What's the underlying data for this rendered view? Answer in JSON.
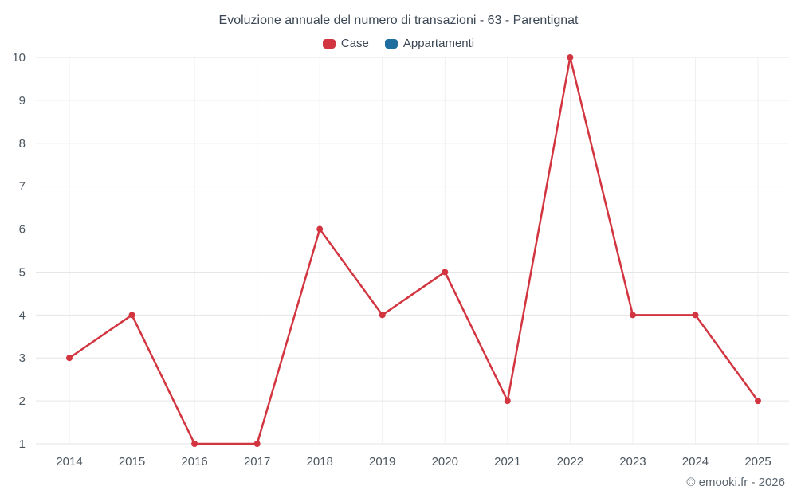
{
  "title": "Evoluzione annuale del numero di transazioni - 63 - Parentignat",
  "legend": {
    "items": [
      {
        "label": "Case",
        "color": "#d2353f"
      },
      {
        "label": "Appartamenti",
        "color": "#1d6d9f"
      }
    ]
  },
  "footer": {
    "copyright": "© emooki.fr - 2026"
  },
  "chart_data": {
    "type": "line",
    "title": "Evoluzione annuale del numero di transazioni - 63 - Parentignat",
    "categories": [
      "2014",
      "2015",
      "2016",
      "2017",
      "2018",
      "2019",
      "2020",
      "2021",
      "2022",
      "2023",
      "2024",
      "2025"
    ],
    "series": [
      {
        "name": "Case",
        "color": "#d2353f",
        "values": [
          3,
          4,
          1,
          1,
          6,
          4,
          5,
          2,
          10,
          4,
          4,
          2
        ]
      },
      {
        "name": "Appartamenti",
        "color": "#1d6d9f",
        "values": []
      }
    ],
    "xlabel": "",
    "ylabel": "",
    "ylim": [
      1,
      10
    ],
    "yticks": [
      1,
      2,
      3,
      4,
      5,
      6,
      7,
      8,
      9,
      10
    ],
    "grid": true,
    "legend_position": "top"
  }
}
